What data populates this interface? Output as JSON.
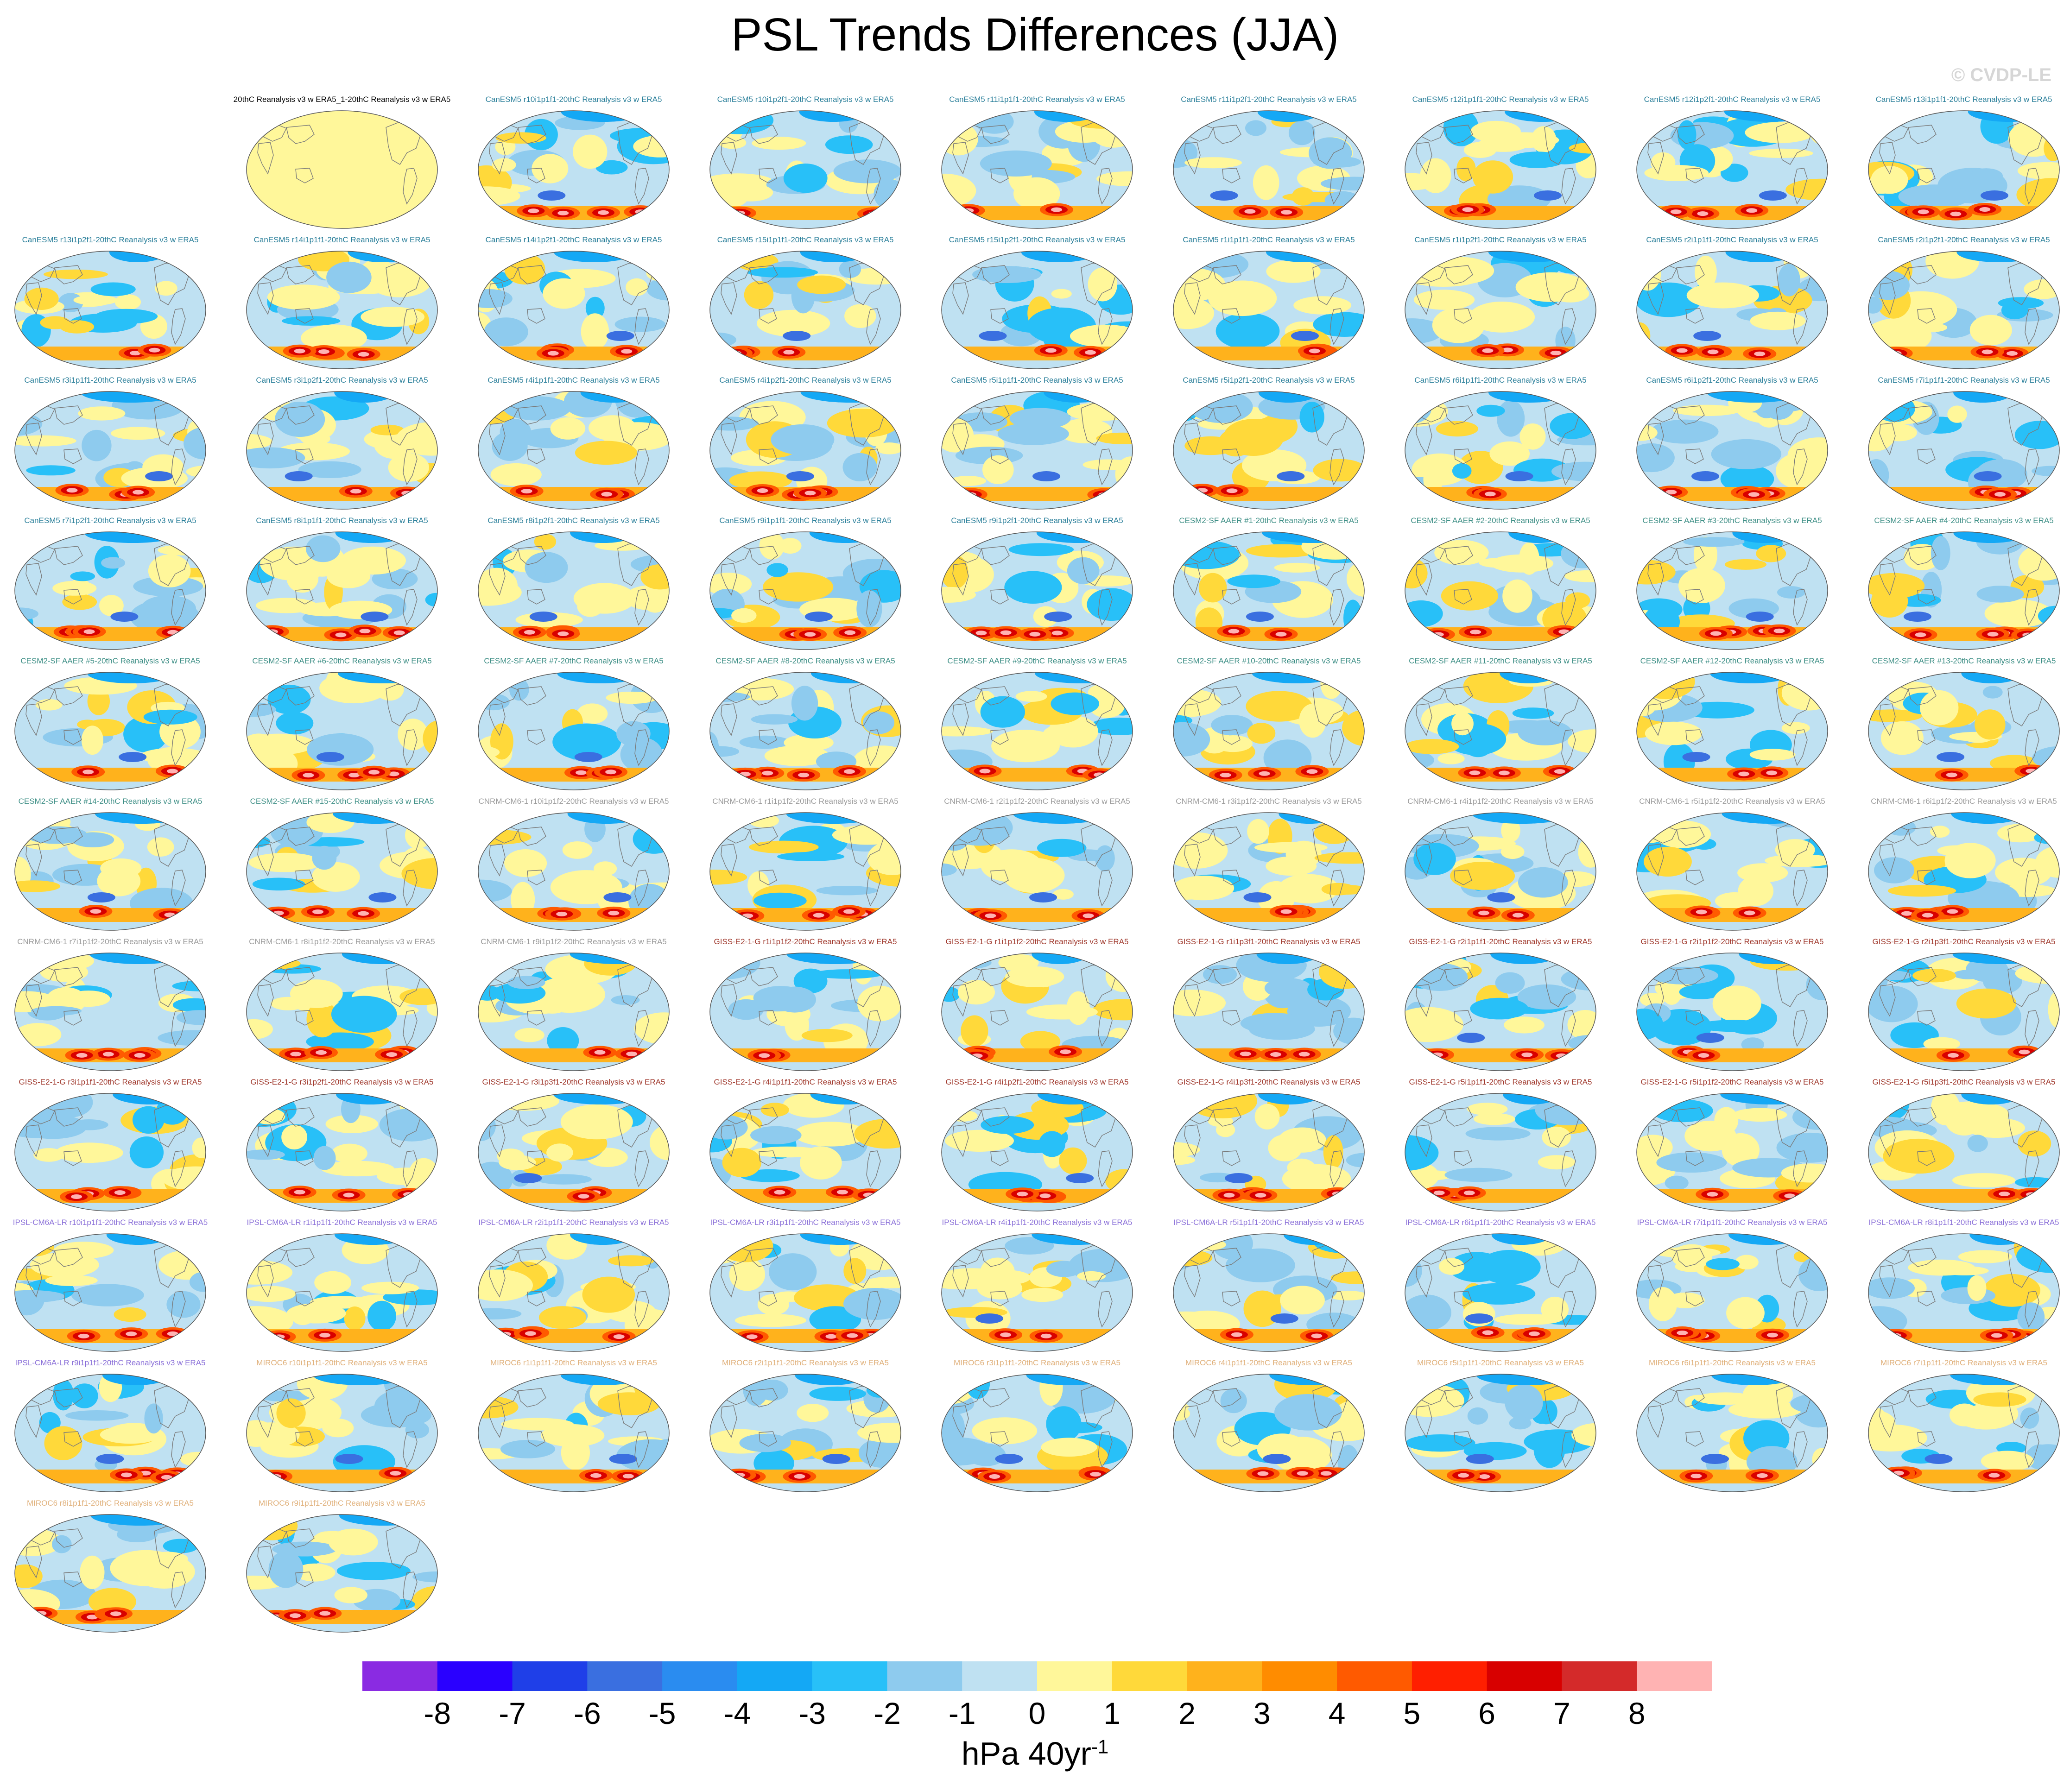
{
  "figure": {
    "title": "PSL Trends Differences (JJA)",
    "watermark": "© CVDP-LE",
    "units_base": "hPa 40yr",
    "units_exp": "-1"
  },
  "colors": {
    "levels": [
      "#8a2be2",
      "#2a00ff",
      "#1f3fe8",
      "#3a6fe0",
      "#2a8cf0",
      "#14a8f5",
      "#28c0f8",
      "#8ecbee",
      "#bfe1f2",
      "#fff79a",
      "#ffd93a",
      "#ffb21c",
      "#ff8c00",
      "#ff5a00",
      "#ff1f00",
      "#d80000",
      "#d42a2a",
      "#ffb3b3"
    ],
    "groups": {
      "obs": "#000000",
      "CanESM5": "#2a7f9a",
      "CESM2-SF AAER": "#3e8f86",
      "CNRM-CM6-1": "#9a9a9a",
      "GISS-E2-1-G": "#a0392d",
      "IPSL-CM6A-LR": "#8a6fd8",
      "MIROC6": "#e0b07a"
    },
    "coast": "#7a7a7a",
    "obs_fill": "#fff79a"
  },
  "chart_data": {
    "type": "small-multiples-map",
    "projection": "Robinson, Pacific-centred",
    "variable": "PSL trend difference (model minus 20thC Reanalysis v3 w ERA5)",
    "season": "JJA",
    "colorbar": {
      "orientation": "horizontal",
      "placement": "bottom",
      "tick_labels": [
        "-8",
        "-7",
        "-6",
        "-5",
        "-4",
        "-3",
        "-2",
        "-1",
        "0",
        "1",
        "2",
        "3",
        "4",
        "5",
        "6",
        "7",
        "8"
      ],
      "n_colors": 18
    },
    "panels": [
      {
        "label": "20thC Reanalysis v3 w ERA5_1-20thC Reanalysis v3 w ERA5",
        "group": "obs"
      },
      {
        "label": "CanESM5 r10i1p1f1-20thC Reanalysis v3 w ERA5",
        "group": "CanESM5"
      },
      {
        "label": "CanESM5 r10i1p2f1-20thC Reanalysis v3 w ERA5",
        "group": "CanESM5"
      },
      {
        "label": "CanESM5 r11i1p1f1-20thC Reanalysis v3 w ERA5",
        "group": "CanESM5"
      },
      {
        "label": "CanESM5 r11i1p2f1-20thC Reanalysis v3 w ERA5",
        "group": "CanESM5"
      },
      {
        "label": "CanESM5 r12i1p1f1-20thC Reanalysis v3 w ERA5",
        "group": "CanESM5"
      },
      {
        "label": "CanESM5 r12i1p2f1-20thC Reanalysis v3 w ERA5",
        "group": "CanESM5"
      },
      {
        "label": "CanESM5 r13i1p1f1-20thC Reanalysis v3 w ERA5",
        "group": "CanESM5"
      },
      {
        "label": "CanESM5 r13i1p2f1-20thC Reanalysis v3 w ERA5",
        "group": "CanESM5"
      },
      {
        "label": "CanESM5 r14i1p1f1-20thC Reanalysis v3 w ERA5",
        "group": "CanESM5"
      },
      {
        "label": "CanESM5 r14i1p2f1-20thC Reanalysis v3 w ERA5",
        "group": "CanESM5"
      },
      {
        "label": "CanESM5 r15i1p1f1-20thC Reanalysis v3 w ERA5",
        "group": "CanESM5"
      },
      {
        "label": "CanESM5 r15i1p2f1-20thC Reanalysis v3 w ERA5",
        "group": "CanESM5"
      },
      {
        "label": "CanESM5 r1i1p1f1-20thC Reanalysis v3 w ERA5",
        "group": "CanESM5"
      },
      {
        "label": "CanESM5 r1i1p2f1-20thC Reanalysis v3 w ERA5",
        "group": "CanESM5"
      },
      {
        "label": "CanESM5 r2i1p1f1-20thC Reanalysis v3 w ERA5",
        "group": "CanESM5"
      },
      {
        "label": "CanESM5 r2i1p2f1-20thC Reanalysis v3 w ERA5",
        "group": "CanESM5"
      },
      {
        "label": "CanESM5 r3i1p1f1-20thC Reanalysis v3 w ERA5",
        "group": "CanESM5"
      },
      {
        "label": "CanESM5 r3i1p2f1-20thC Reanalysis v3 w ERA5",
        "group": "CanESM5"
      },
      {
        "label": "CanESM5 r4i1p1f1-20thC Reanalysis v3 w ERA5",
        "group": "CanESM5"
      },
      {
        "label": "CanESM5 r4i1p2f1-20thC Reanalysis v3 w ERA5",
        "group": "CanESM5"
      },
      {
        "label": "CanESM5 r5i1p1f1-20thC Reanalysis v3 w ERA5",
        "group": "CanESM5"
      },
      {
        "label": "CanESM5 r5i1p2f1-20thC Reanalysis v3 w ERA5",
        "group": "CanESM5"
      },
      {
        "label": "CanESM5 r6i1p1f1-20thC Reanalysis v3 w ERA5",
        "group": "CanESM5"
      },
      {
        "label": "CanESM5 r6i1p2f1-20thC Reanalysis v3 w ERA5",
        "group": "CanESM5"
      },
      {
        "label": "CanESM5 r7i1p1f1-20thC Reanalysis v3 w ERA5",
        "group": "CanESM5"
      },
      {
        "label": "CanESM5 r7i1p2f1-20thC Reanalysis v3 w ERA5",
        "group": "CanESM5"
      },
      {
        "label": "CanESM5 r8i1p1f1-20thC Reanalysis v3 w ERA5",
        "group": "CanESM5"
      },
      {
        "label": "CanESM5 r8i1p2f1-20thC Reanalysis v3 w ERA5",
        "group": "CanESM5"
      },
      {
        "label": "CanESM5 r9i1p1f1-20thC Reanalysis v3 w ERA5",
        "group": "CanESM5"
      },
      {
        "label": "CanESM5 r9i1p2f1-20thC Reanalysis v3 w ERA5",
        "group": "CanESM5"
      },
      {
        "label": "CESM2-SF AAER #1-20thC Reanalysis v3 w ERA5",
        "group": "CESM2-SF AAER"
      },
      {
        "label": "CESM2-SF AAER #2-20thC Reanalysis v3 w ERA5",
        "group": "CESM2-SF AAER"
      },
      {
        "label": "CESM2-SF AAER #3-20thC Reanalysis v3 w ERA5",
        "group": "CESM2-SF AAER"
      },
      {
        "label": "CESM2-SF AAER #4-20thC Reanalysis v3 w ERA5",
        "group": "CESM2-SF AAER"
      },
      {
        "label": "CESM2-SF AAER #5-20thC Reanalysis v3 w ERA5",
        "group": "CESM2-SF AAER"
      },
      {
        "label": "CESM2-SF AAER #6-20thC Reanalysis v3 w ERA5",
        "group": "CESM2-SF AAER"
      },
      {
        "label": "CESM2-SF AAER #7-20thC Reanalysis v3 w ERA5",
        "group": "CESM2-SF AAER"
      },
      {
        "label": "CESM2-SF AAER #8-20thC Reanalysis v3 w ERA5",
        "group": "CESM2-SF AAER"
      },
      {
        "label": "CESM2-SF AAER #9-20thC Reanalysis v3 w ERA5",
        "group": "CESM2-SF AAER"
      },
      {
        "label": "CESM2-SF AAER #10-20thC Reanalysis v3 w ERA5",
        "group": "CESM2-SF AAER"
      },
      {
        "label": "CESM2-SF AAER #11-20thC Reanalysis v3 w ERA5",
        "group": "CESM2-SF AAER"
      },
      {
        "label": "CESM2-SF AAER #12-20thC Reanalysis v3 w ERA5",
        "group": "CESM2-SF AAER"
      },
      {
        "label": "CESM2-SF AAER #13-20thC Reanalysis v3 w ERA5",
        "group": "CESM2-SF AAER"
      },
      {
        "label": "CESM2-SF AAER #14-20thC Reanalysis v3 w ERA5",
        "group": "CESM2-SF AAER"
      },
      {
        "label": "CESM2-SF AAER #15-20thC Reanalysis v3 w ERA5",
        "group": "CESM2-SF AAER"
      },
      {
        "label": "CNRM-CM6-1 r10i1p1f2-20thC Reanalysis v3 w ERA5",
        "group": "CNRM-CM6-1"
      },
      {
        "label": "CNRM-CM6-1 r1i1p1f2-20thC Reanalysis v3 w ERA5",
        "group": "CNRM-CM6-1"
      },
      {
        "label": "CNRM-CM6-1 r2i1p1f2-20thC Reanalysis v3 w ERA5",
        "group": "CNRM-CM6-1"
      },
      {
        "label": "CNRM-CM6-1 r3i1p1f2-20thC Reanalysis v3 w ERA5",
        "group": "CNRM-CM6-1"
      },
      {
        "label": "CNRM-CM6-1 r4i1p1f2-20thC Reanalysis v3 w ERA5",
        "group": "CNRM-CM6-1"
      },
      {
        "label": "CNRM-CM6-1 r5i1p1f2-20thC Reanalysis v3 w ERA5",
        "group": "CNRM-CM6-1"
      },
      {
        "label": "CNRM-CM6-1 r6i1p1f2-20thC Reanalysis v3 w ERA5",
        "group": "CNRM-CM6-1"
      },
      {
        "label": "CNRM-CM6-1 r7i1p1f2-20thC Reanalysis v3 w ERA5",
        "group": "CNRM-CM6-1"
      },
      {
        "label": "CNRM-CM6-1 r8i1p1f2-20thC Reanalysis v3 w ERA5",
        "group": "CNRM-CM6-1"
      },
      {
        "label": "CNRM-CM6-1 r9i1p1f2-20thC Reanalysis v3 w ERA5",
        "group": "CNRM-CM6-1"
      },
      {
        "label": "GISS-E2-1-G r1i1p1f2-20thC Reanalysis v3 w ERA5",
        "group": "GISS-E2-1-G"
      },
      {
        "label": "GISS-E2-1-G r1i1p1f2-20thC Reanalysis v3 w ERA5",
        "group": "GISS-E2-1-G"
      },
      {
        "label": "GISS-E2-1-G r1i1p3f1-20thC Reanalysis v3 w ERA5",
        "group": "GISS-E2-1-G"
      },
      {
        "label": "GISS-E2-1-G r2i1p1f1-20thC Reanalysis v3 w ERA5",
        "group": "GISS-E2-1-G"
      },
      {
        "label": "GISS-E2-1-G r2i1p1f2-20thC Reanalysis v3 w ERA5",
        "group": "GISS-E2-1-G"
      },
      {
        "label": "GISS-E2-1-G r2i1p3f1-20thC Reanalysis v3 w ERA5",
        "group": "GISS-E2-1-G"
      },
      {
        "label": "GISS-E2-1-G r3i1p1f1-20thC Reanalysis v3 w ERA5",
        "group": "GISS-E2-1-G"
      },
      {
        "label": "GISS-E2-1-G r3i1p2f1-20thC Reanalysis v3 w ERA5",
        "group": "GISS-E2-1-G"
      },
      {
        "label": "GISS-E2-1-G r3i1p3f1-20thC Reanalysis v3 w ERA5",
        "group": "GISS-E2-1-G"
      },
      {
        "label": "GISS-E2-1-G r4i1p1f1-20thC Reanalysis v3 w ERA5",
        "group": "GISS-E2-1-G"
      },
      {
        "label": "GISS-E2-1-G r4i1p2f1-20thC Reanalysis v3 w ERA5",
        "group": "GISS-E2-1-G"
      },
      {
        "label": "GISS-E2-1-G r4i1p3f1-20thC Reanalysis v3 w ERA5",
        "group": "GISS-E2-1-G"
      },
      {
        "label": "GISS-E2-1-G r5i1p1f1-20thC Reanalysis v3 w ERA5",
        "group": "GISS-E2-1-G"
      },
      {
        "label": "GISS-E2-1-G r5i1p1f2-20thC Reanalysis v3 w ERA5",
        "group": "GISS-E2-1-G"
      },
      {
        "label": "GISS-E2-1-G r5i1p3f1-20thC Reanalysis v3 w ERA5",
        "group": "GISS-E2-1-G"
      },
      {
        "label": "IPSL-CM6A-LR r10i1p1f1-20thC Reanalysis v3 w ERA5",
        "group": "IPSL-CM6A-LR"
      },
      {
        "label": "IPSL-CM6A-LR r1i1p1f1-20thC Reanalysis v3 w ERA5",
        "group": "IPSL-CM6A-LR"
      },
      {
        "label": "IPSL-CM6A-LR r2i1p1f1-20thC Reanalysis v3 w ERA5",
        "group": "IPSL-CM6A-LR"
      },
      {
        "label": "IPSL-CM6A-LR r3i1p1f1-20thC Reanalysis v3 w ERA5",
        "group": "IPSL-CM6A-LR"
      },
      {
        "label": "IPSL-CM6A-LR r4i1p1f1-20thC Reanalysis v3 w ERA5",
        "group": "IPSL-CM6A-LR"
      },
      {
        "label": "IPSL-CM6A-LR r5i1p1f1-20thC Reanalysis v3 w ERA5",
        "group": "IPSL-CM6A-LR"
      },
      {
        "label": "IPSL-CM6A-LR r6i1p1f1-20thC Reanalysis v3 w ERA5",
        "group": "IPSL-CM6A-LR"
      },
      {
        "label": "IPSL-CM6A-LR r7i1p1f1-20thC Reanalysis v3 w ERA5",
        "group": "IPSL-CM6A-LR"
      },
      {
        "label": "IPSL-CM6A-LR r8i1p1f1-20thC Reanalysis v3 w ERA5",
        "group": "IPSL-CM6A-LR"
      },
      {
        "label": "IPSL-CM6A-LR r9i1p1f1-20thC Reanalysis v3 w ERA5",
        "group": "IPSL-CM6A-LR"
      },
      {
        "label": "MIROC6 r10i1p1f1-20thC Reanalysis v3 w ERA5",
        "group": "MIROC6"
      },
      {
        "label": "MIROC6 r1i1p1f1-20thC Reanalysis v3 w ERA5",
        "group": "MIROC6"
      },
      {
        "label": "MIROC6 r2i1p1f1-20thC Reanalysis v3 w ERA5",
        "group": "MIROC6"
      },
      {
        "label": "MIROC6 r3i1p1f1-20thC Reanalysis v3 w ERA5",
        "group": "MIROC6"
      },
      {
        "label": "MIROC6 r4i1p1f1-20thC Reanalysis v3 w ERA5",
        "group": "MIROC6"
      },
      {
        "label": "MIROC6 r5i1p1f1-20thC Reanalysis v3 w ERA5",
        "group": "MIROC6"
      },
      {
        "label": "MIROC6 r6i1p1f1-20thC Reanalysis v3 w ERA5",
        "group": "MIROC6"
      },
      {
        "label": "MIROC6 r7i1p1f1-20thC Reanalysis v3 w ERA5",
        "group": "MIROC6"
      },
      {
        "label": "MIROC6 r8i1p1f1-20thC Reanalysis v3 w ERA5",
        "group": "MIROC6"
      },
      {
        "label": "MIROC6 r9i1p1f1-20thC Reanalysis v3 w ERA5",
        "group": "MIROC6"
      }
    ]
  }
}
